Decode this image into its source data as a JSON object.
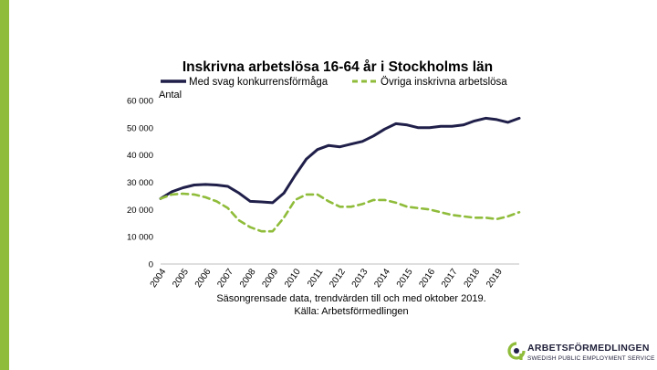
{
  "chart_data": {
    "type": "line",
    "title": "Inskrivna arbetslösa 16-64 år i Stockholms län",
    "ylabel": "Antal",
    "xlabel": "",
    "ylim": [
      0,
      60000
    ],
    "yticks": [
      0,
      10000,
      20000,
      30000,
      40000,
      50000,
      60000
    ],
    "ytick_labels": [
      "0",
      "10 000",
      "20 000",
      "30 000",
      "40 000",
      "50 000",
      "60 000"
    ],
    "categories": [
      "2004",
      "2005",
      "2006",
      "2007",
      "2008",
      "2009",
      "2010",
      "2011",
      "2012",
      "2013",
      "2014",
      "2015",
      "2016",
      "2017",
      "2018",
      "2019"
    ],
    "legend_position": "top",
    "series": [
      {
        "name": "Med svag konkurrensförmåga",
        "color": "#1f1f4a",
        "style": "solid",
        "x": [
          2004.0,
          2004.5,
          2005.0,
          2005.5,
          2006.0,
          2006.5,
          2007.0,
          2007.5,
          2008.0,
          2008.5,
          2009.0,
          2009.5,
          2010.0,
          2010.5,
          2011.0,
          2011.5,
          2012.0,
          2012.5,
          2013.0,
          2013.5,
          2014.0,
          2014.5,
          2015.0,
          2015.5,
          2016.0,
          2016.5,
          2017.0,
          2017.5,
          2018.0,
          2018.5,
          2019.0,
          2019.5,
          2020.0
        ],
        "values": [
          24000,
          26500,
          28000,
          29000,
          29200,
          29000,
          28500,
          26000,
          23000,
          22800,
          22500,
          26000,
          32500,
          38500,
          42000,
          43500,
          43000,
          44000,
          45000,
          47000,
          49500,
          51500,
          51000,
          50000,
          50000,
          50500,
          50500,
          51000,
          52500,
          53500,
          53000,
          52000,
          53500
        ]
      },
      {
        "name": "Övriga inskrivna arbetslösa",
        "color": "#8fbc3a",
        "style": "dashed",
        "x": [
          2004.0,
          2004.5,
          2005.0,
          2005.5,
          2006.0,
          2006.5,
          2007.0,
          2007.5,
          2008.0,
          2008.5,
          2009.0,
          2009.5,
          2010.0,
          2010.5,
          2011.0,
          2011.5,
          2012.0,
          2012.5,
          2013.0,
          2013.5,
          2014.0,
          2014.5,
          2015.0,
          2015.5,
          2016.0,
          2016.5,
          2017.0,
          2017.5,
          2018.0,
          2018.5,
          2019.0,
          2019.5,
          2020.0
        ],
        "values": [
          24000,
          25500,
          25800,
          25500,
          24500,
          23000,
          20500,
          16000,
          13500,
          12000,
          12000,
          17000,
          23500,
          25500,
          25500,
          23000,
          21000,
          21000,
          22000,
          23500,
          23500,
          22500,
          21000,
          20500,
          20000,
          19000,
          18000,
          17500,
          17000,
          17000,
          16500,
          17500,
          19000
        ]
      }
    ],
    "notes": [
      "Säsongrensade data, trendvärden till och med oktober 2019.",
      "Källa: Arbetsförmedlingen"
    ]
  },
  "logo": {
    "name": "ARBETSFÖRMEDLINGEN",
    "subtitle": "SWEDISH PUBLIC EMPLOYMENT SERVICE"
  },
  "colors": {
    "accent": "#8fbc3a",
    "navy": "#1f1f4a"
  }
}
